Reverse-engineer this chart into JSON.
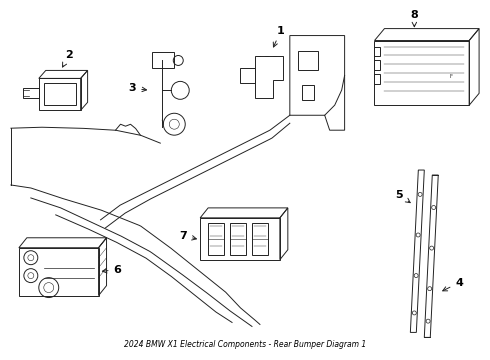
{
  "title": "2024 BMW X1 Electrical Components - Rear Bumper Diagram 1",
  "background_color": "#ffffff",
  "line_color": "#222222",
  "label_color": "#000000",
  "fig_width": 4.9,
  "fig_height": 3.6,
  "dpi": 100
}
